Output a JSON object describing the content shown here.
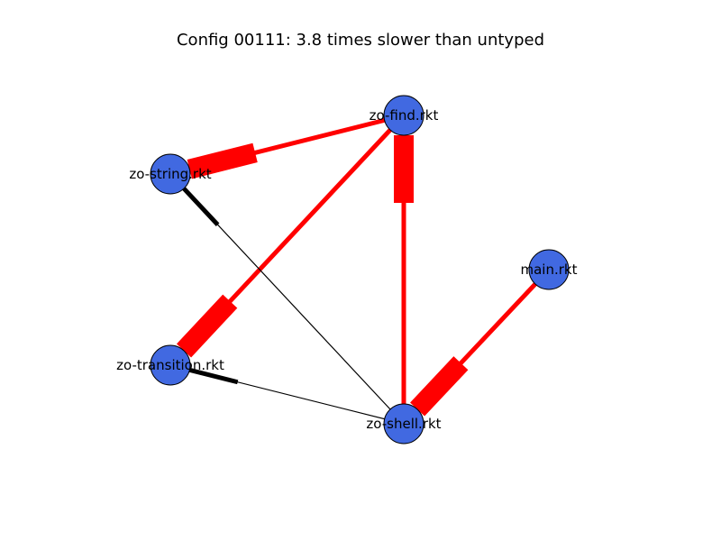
{
  "title": "Config 00111: 3.8 times slower than untyped",
  "colors": {
    "node_fill": "#4169e1",
    "node_stroke": "#000000",
    "typed_boundary_edge": "#ff0000",
    "untyped_edge": "#000000"
  },
  "nodes": [
    {
      "id": "zo-find",
      "label": "zo-find.rkt"
    },
    {
      "id": "zo-string",
      "label": "zo-string.rkt"
    },
    {
      "id": "main",
      "label": "main.rkt"
    },
    {
      "id": "zo-transition",
      "label": "zo-transition.rkt"
    },
    {
      "id": "zo-shell",
      "label": "zo-shell.rkt"
    }
  ],
  "edges": [
    {
      "source": "zo-find",
      "target": "zo-string",
      "color": "#ff0000"
    },
    {
      "source": "zo-find",
      "target": "zo-transition",
      "color": "#ff0000"
    },
    {
      "source": "zo-shell",
      "target": "zo-find",
      "color": "#ff0000"
    },
    {
      "source": "main",
      "target": "zo-shell",
      "color": "#ff0000"
    },
    {
      "source": "zo-shell",
      "target": "zo-string",
      "color": "#000000"
    },
    {
      "source": "zo-shell",
      "target": "zo-transition",
      "color": "#000000"
    }
  ]
}
